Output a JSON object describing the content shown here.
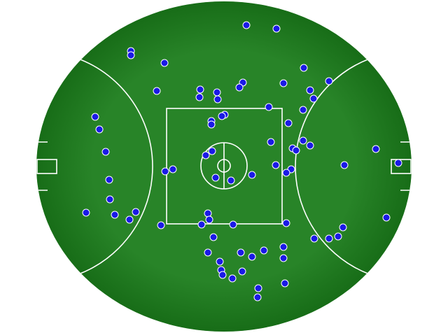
{
  "chart_data": {
    "type": "scatter",
    "color": "#1a1ae6",
    "xlim": [
      -320,
      320
    ],
    "ylim": [
      -238,
      238
    ],
    "x": [
      32,
      75,
      -133,
      -133,
      -85,
      114,
      150,
      85,
      27,
      22,
      -34,
      -10,
      -96,
      123,
      128,
      -35,
      -9,
      64,
      113,
      -184,
      1,
      -3,
      -18,
      -18,
      92,
      -178,
      67,
      113,
      123,
      98,
      103,
      217,
      -169,
      -17,
      -26,
      249,
      172,
      74,
      96,
      89,
      -84,
      -73,
      40,
      -12,
      10,
      -164,
      -163,
      -197,
      -126,
      -156,
      -135,
      -23,
      -21,
      -90,
      -32,
      13,
      89,
      232,
      170,
      -15,
      129,
      150,
      163,
      85,
      57,
      -23,
      24,
      40,
      85,
      -6,
      -4,
      26,
      -2,
      12,
      87,
      49,
      48
    ],
    "values": [
      202,
      197,
      165,
      159,
      148,
      141,
      122,
      119,
      120,
      113,
      110,
      106,
      108,
      109,
      97,
      99,
      96,
      85,
      81,
      71,
      74,
      72,
      65,
      60,
      62,
      53,
      35,
      37,
      30,
      26,
      23,
      25,
      21,
      22,
      16,
      5,
      2,
      2,
      -4,
      -9,
      -7,
      -4,
      -12,
      -16,
      -20,
      -19,
      -47,
      -66,
      -65,
      -69,
      -76,
      -67,
      -76,
      -84,
      -83,
      -83,
      -81,
      -73,
      -87,
      -101,
      -103,
      -103,
      -100,
      -115,
      -120,
      -123,
      -123,
      -129,
      -131,
      -136,
      -148,
      -150,
      -155,
      -160,
      -167,
      -174,
      -187
    ]
  }
}
